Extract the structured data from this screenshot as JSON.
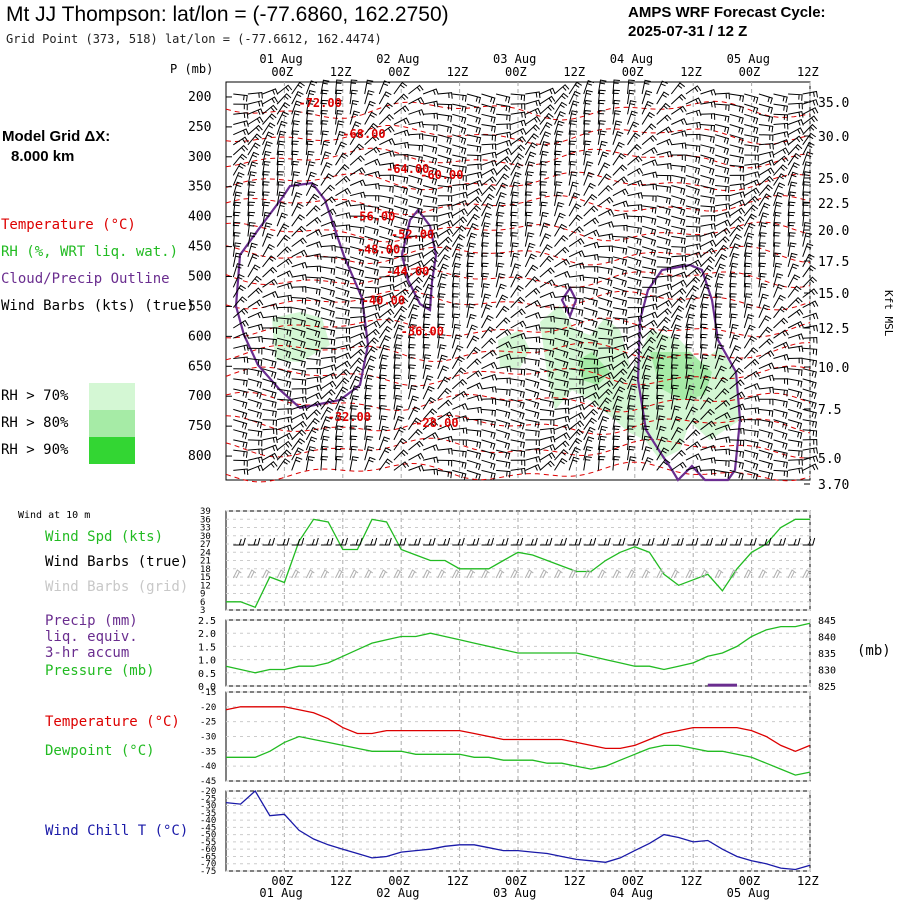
{
  "header": {
    "title": "Mt JJ Thompson:  lat/lon = (-77.6860, 162.2750)",
    "gridpoint": "Grid Point (373, 518) lat/lon = (-77.6612, 162.4474)",
    "cycle_line1": "AMPS WRF Forecast Cycle:",
    "cycle_line2": "2025-07-31 / 12  Z"
  },
  "model": {
    "grid_label": "Model Grid ΔX:",
    "grid_value": "8.000 km"
  },
  "colors": {
    "temperature": "#dd0000",
    "rh": "#22bb22",
    "cloud": "#6a2d8f",
    "wind": "#000000",
    "wind_grid": "#aaaaaa",
    "windchill": "#1a1aa8",
    "rh70": "#d4f7d4",
    "rh80": "#a6eba6",
    "rh90": "#33d633",
    "grid": "#aaaaaa"
  },
  "legend": {
    "temperature": "Temperature (°C)",
    "rh": "RH (%, WRT liq. wat.)",
    "cloud": "Cloud/Precip Outline",
    "wind": "Wind Barbs (kts) (true)",
    "rh_levels": [
      "RH > 70%",
      "RH > 80%",
      "RH > 90%"
    ]
  },
  "time_axis": {
    "top_dates": [
      "01 Aug",
      "02 Aug",
      "03 Aug",
      "04 Aug",
      "05 Aug"
    ],
    "hour_labels": [
      "00Z",
      "12Z",
      "00Z",
      "12Z",
      "00Z",
      "12Z",
      "00Z",
      "12Z",
      "00Z",
      "12Z"
    ],
    "bottom_dates": [
      "01 Aug",
      "02 Aug",
      "03 Aug",
      "04 Aug",
      "05 Aug"
    ],
    "hours_from_start": [
      12,
      24,
      36,
      48,
      60,
      72,
      84,
      96,
      108,
      120
    ]
  },
  "chart_data": [
    {
      "type": "heatmap",
      "name_label": "P (mb)",
      "y_pressure_ticks": [
        "200",
        "250",
        "300",
        "350",
        "400",
        "450",
        "500",
        "550",
        "600",
        "650",
        "700",
        "750",
        "800"
      ],
      "right_axis_label": "Kft MSL",
      "right_axis_ticks": [
        "35.0",
        "30.0",
        "25.0",
        "22.5",
        "20.0",
        "17.5",
        "15.0",
        "12.5",
        "10.0",
        "7.5",
        "5.0",
        "3.70"
      ],
      "temperature_labels": [
        {
          "text": "-72.00",
          "t": 19,
          "p": 210
        },
        {
          "text": "-68.00",
          "t": 28,
          "p": 262
        },
        {
          "text": "-64.00",
          "t": 37,
          "p": 320
        },
        {
          "text": "-60.00",
          "t": 44,
          "p": 330
        },
        {
          "text": "-56.00",
          "t": 30,
          "p": 400
        },
        {
          "text": "-52.00",
          "t": 38,
          "p": 430
        },
        {
          "text": "-48.00",
          "t": 31,
          "p": 455
        },
        {
          "text": "-44.00",
          "t": 37,
          "p": 492
        },
        {
          "text": "-40.00",
          "t": 32,
          "p": 540
        },
        {
          "text": "-36.00",
          "t": 40,
          "p": 592
        },
        {
          "text": "-32.00",
          "t": 25,
          "p": 735
        },
        {
          "text": "-28.00",
          "t": 43,
          "p": 745
        }
      ]
    },
    {
      "type": "line",
      "subtitle": "Wind at 10 m",
      "labels": [
        "Wind Spd (kts)",
        "Wind Barbs (true)",
        "Wind Barbs (grid)"
      ],
      "yticks": [
        "39",
        "36",
        "33",
        "30",
        "27",
        "24",
        "21",
        "18",
        "15",
        "12",
        "9",
        "6",
        "3"
      ],
      "ylim": [
        3,
        39
      ],
      "series": [
        {
          "name": "Wind Spd (kts)",
          "x": [
            0,
            3,
            6,
            9,
            12,
            15,
            18,
            21,
            24,
            27,
            30,
            33,
            36,
            39,
            42,
            45,
            48,
            51,
            54,
            57,
            60,
            63,
            66,
            69,
            72,
            75,
            78,
            81,
            84,
            87,
            90,
            93,
            96,
            99,
            102,
            105,
            108,
            111,
            114,
            117,
            120
          ],
          "values": [
            6,
            6,
            4,
            15,
            13,
            28,
            36,
            35,
            25,
            25,
            36,
            35,
            25,
            23,
            21,
            21,
            18,
            18,
            18,
            21,
            24,
            23,
            21,
            19,
            17,
            17,
            21,
            24,
            26,
            24,
            16,
            12,
            14,
            16,
            10,
            18,
            24,
            27,
            33,
            36,
            36
          ]
        }
      ]
    },
    {
      "type": "line",
      "labels": [
        "Precip (mm)",
        "liq. equiv.",
        "3-hr accum",
        "Pressure (mb)"
      ],
      "yticks_left": [
        "2.5",
        "2.0",
        "1.5",
        "1.0",
        "0.5",
        "0.0"
      ],
      "ylim_left": [
        0,
        2.5
      ],
      "yticks_right": [
        "845",
        "840",
        "835",
        "830",
        "825"
      ],
      "ylim_right": [
        825,
        845
      ],
      "right_axis_label": "(mb)",
      "series": [
        {
          "name": "Pressure (mb)",
          "x": [
            0,
            3,
            6,
            9,
            12,
            15,
            18,
            21,
            24,
            27,
            30,
            33,
            36,
            39,
            42,
            45,
            48,
            51,
            54,
            57,
            60,
            63,
            66,
            69,
            72,
            75,
            78,
            81,
            84,
            87,
            90,
            93,
            96,
            99,
            102,
            105,
            108,
            111,
            114,
            117,
            120
          ],
          "values": [
            831,
            830,
            829,
            830,
            830,
            831,
            831,
            832,
            834,
            836,
            838,
            839,
            840,
            840,
            841,
            840,
            839,
            838,
            837,
            836,
            835,
            835,
            835,
            835,
            835,
            834,
            833,
            832,
            831,
            831,
            830,
            831,
            832,
            834,
            835,
            837,
            840,
            842,
            843,
            843,
            844
          ]
        },
        {
          "name": "Precip (mm)",
          "bars": [
            {
              "x_start": 99,
              "x_end": 105,
              "value": 0.05
            }
          ]
        }
      ]
    },
    {
      "type": "line",
      "labels": [
        "Temperature (°C)",
        "Dewpoint (°C)"
      ],
      "yticks": [
        "-15",
        "-20",
        "-25",
        "-30",
        "-35",
        "-40",
        "-45"
      ],
      "ylim": [
        -45,
        -15
      ],
      "series": [
        {
          "name": "Temperature (°C)",
          "x": [
            0,
            3,
            6,
            9,
            12,
            15,
            18,
            21,
            24,
            27,
            30,
            33,
            36,
            39,
            42,
            45,
            48,
            51,
            54,
            57,
            60,
            63,
            66,
            69,
            72,
            75,
            78,
            81,
            84,
            87,
            90,
            93,
            96,
            99,
            102,
            105,
            108,
            111,
            114,
            117,
            120
          ],
          "values": [
            -21,
            -20,
            -20,
            -20,
            -20,
            -21,
            -22,
            -24,
            -27,
            -29,
            -29,
            -28,
            -28,
            -28,
            -28,
            -28,
            -28,
            -29,
            -30,
            -31,
            -31,
            -31,
            -31,
            -31,
            -32,
            -33,
            -34,
            -34,
            -33,
            -31,
            -29,
            -28,
            -27,
            -27,
            -27,
            -27,
            -28,
            -30,
            -33,
            -35,
            -33
          ]
        },
        {
          "name": "Dewpoint (°C)",
          "x": [
            0,
            3,
            6,
            9,
            12,
            15,
            18,
            21,
            24,
            27,
            30,
            33,
            36,
            39,
            42,
            45,
            48,
            51,
            54,
            57,
            60,
            63,
            66,
            69,
            72,
            75,
            78,
            81,
            84,
            87,
            90,
            93,
            96,
            99,
            102,
            105,
            108,
            111,
            114,
            117,
            120
          ],
          "values": [
            -37,
            -37,
            -37,
            -35,
            -32,
            -30,
            -31,
            -32,
            -33,
            -34,
            -35,
            -35,
            -35,
            -36,
            -36,
            -36,
            -36,
            -37,
            -37,
            -38,
            -38,
            -38,
            -39,
            -39,
            -40,
            -41,
            -40,
            -38,
            -36,
            -34,
            -33,
            -33,
            -34,
            -35,
            -35,
            -36,
            -37,
            -39,
            -41,
            -43,
            -42
          ]
        }
      ]
    },
    {
      "type": "line",
      "labels": [
        "Wind Chill T (°C)"
      ],
      "yticks": [
        "-20",
        "-25",
        "-30",
        "-35",
        "-40",
        "-45",
        "-50",
        "-55",
        "-60",
        "-65",
        "-70",
        "-75"
      ],
      "ylim": [
        -75,
        -20
      ],
      "series": [
        {
          "name": "Wind Chill T (°C)",
          "x": [
            0,
            3,
            6,
            9,
            12,
            15,
            18,
            21,
            24,
            27,
            30,
            33,
            36,
            39,
            42,
            45,
            48,
            51,
            54,
            57,
            60,
            63,
            66,
            69,
            72,
            75,
            78,
            81,
            84,
            87,
            90,
            93,
            96,
            99,
            102,
            105,
            108,
            111,
            114,
            117,
            120
          ],
          "values": [
            -28,
            -29,
            -20,
            -37,
            -36,
            -47,
            -53,
            -57,
            -60,
            -63,
            -66,
            -65,
            -62,
            -61,
            -60,
            -58,
            -57,
            -57,
            -59,
            -61,
            -61,
            -62,
            -63,
            -65,
            -67,
            -68,
            -69,
            -66,
            -61,
            -56,
            -50,
            -52,
            -55,
            -54,
            -60,
            -65,
            -68,
            -70,
            -73,
            -74,
            -71
          ]
        }
      ]
    }
  ]
}
